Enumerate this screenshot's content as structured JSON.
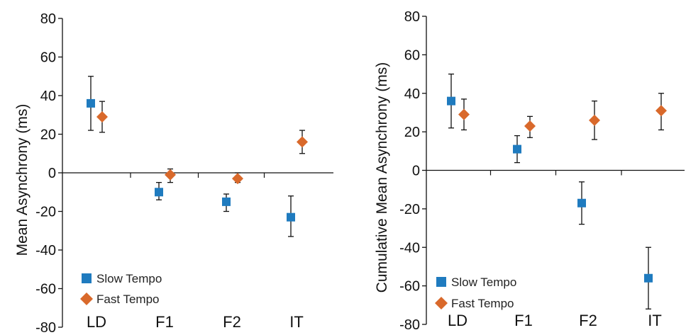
{
  "colors": {
    "slow": "#1f7bbf",
    "fast": "#d9692b",
    "axis": "#111111"
  },
  "chart_data": [
    {
      "type": "scatter",
      "title": "",
      "xlabel": "",
      "ylabel": "Mean Asynchrony (ms)",
      "ylim": [
        -80,
        80
      ],
      "yticks": [
        80,
        60,
        40,
        20,
        0,
        -20,
        -40,
        -60,
        -80
      ],
      "categories": [
        "LD",
        "F1",
        "F2",
        "IT"
      ],
      "grid": false,
      "legend": "bottom-left",
      "series": [
        {
          "name": "Slow Tempo",
          "marker": "square",
          "values": [
            36,
            -10,
            -15,
            -23
          ],
          "err_low": [
            22,
            -14,
            -20,
            -33
          ],
          "err_high": [
            50,
            -5,
            -11,
            -12
          ]
        },
        {
          "name": "Fast Tempo",
          "marker": "diamond",
          "values": [
            29,
            -1,
            -3,
            16
          ],
          "err_low": [
            21,
            -5,
            -5,
            10
          ],
          "err_high": [
            37,
            2,
            0,
            22
          ]
        }
      ]
    },
    {
      "type": "scatter",
      "title": "",
      "xlabel": "",
      "ylabel": "Cumulative Mean Asynchrony (ms)",
      "ylim": [
        -80,
        80
      ],
      "yticks": [
        80,
        60,
        40,
        20,
        0,
        -20,
        -40,
        -60,
        -80
      ],
      "categories": [
        "LD",
        "F1",
        "F2",
        "IT"
      ],
      "grid": false,
      "legend": "bottom-left",
      "series": [
        {
          "name": "Slow Tempo",
          "marker": "square",
          "values": [
            36,
            11,
            -17,
            -56
          ],
          "err_low": [
            22,
            4,
            -28,
            -72
          ],
          "err_high": [
            50,
            18,
            -6,
            -40
          ]
        },
        {
          "name": "Fast Tempo",
          "marker": "diamond",
          "values": [
            29,
            23,
            26,
            31
          ],
          "err_low": [
            21,
            17,
            16,
            21
          ],
          "err_high": [
            37,
            28,
            36,
            40
          ]
        }
      ]
    }
  ]
}
